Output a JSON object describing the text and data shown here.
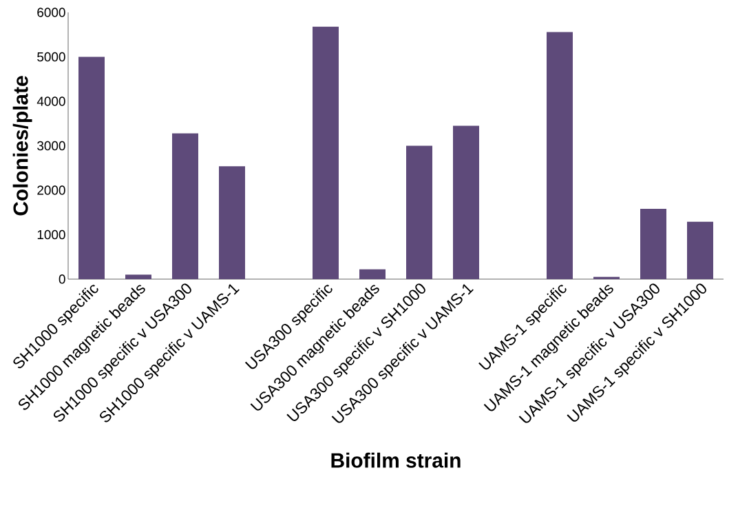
{
  "chart_data": {
    "type": "bar",
    "xlabel": "Biofilm strain",
    "ylabel": "Colonies/plate",
    "categories": [
      "SH1000 specific",
      "SH1000 magnetic beads",
      "SH1000 specific v USA300",
      "SH1000 specific v UAMS-1",
      null,
      "USA300 specific",
      "USA300 magnetic beads",
      "USA300 specific v SH1000",
      "USA300 specific v UAMS-1",
      null,
      "UAMS-1 specific",
      "UAMS-1 magnetic beads",
      "UAMS-1 specific v USA300",
      "UAMS-1 specific v SH1000"
    ],
    "values": [
      5000,
      100,
      3280,
      2540,
      null,
      5680,
      220,
      3000,
      3450,
      null,
      5560,
      50,
      1580,
      1290
    ],
    "color": "#5e4a7a",
    "ylim": [
      0,
      6000
    ],
    "yticks": [
      0,
      1000,
      2000,
      3000,
      4000,
      5000,
      6000
    ],
    "grid": false
  }
}
